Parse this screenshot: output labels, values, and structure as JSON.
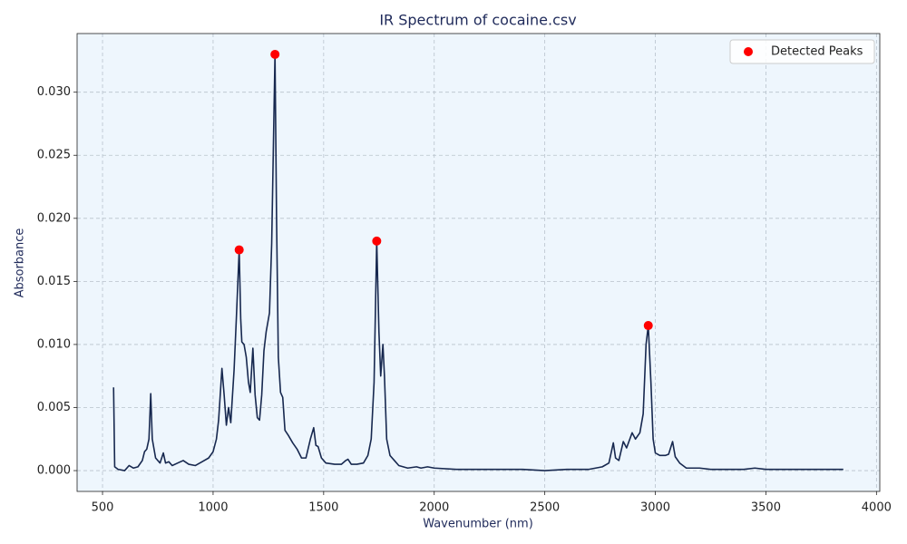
{
  "chart_data": {
    "type": "line",
    "title": "IR Spectrum of cocaine.csv",
    "x_label": "Wavenumber (nm)",
    "y_label": "Absorbance",
    "xlim": [
      385,
      4015
    ],
    "ylim": [
      -0.00165,
      0.03465
    ],
    "xticks": [
      500,
      1000,
      1500,
      2000,
      2500,
      3000,
      3500,
      4000
    ],
    "yticks": [
      {
        "value": 0,
        "label": "0.000"
      },
      {
        "value": 0.005,
        "label": "0.005"
      },
      {
        "value": 0.01,
        "label": "0.010"
      },
      {
        "value": 0.015,
        "label": "0.015"
      },
      {
        "value": 0.02,
        "label": "0.020"
      },
      {
        "value": 0.025,
        "label": "0.025"
      },
      {
        "value": 0.03,
        "label": "0.030"
      }
    ],
    "grid": true,
    "background": "#eef6fd",
    "legend_position": "upper-right",
    "series": [
      {
        "type": "line",
        "color": "#17284f",
        "x": [
          550,
          555,
          570,
          600,
          620,
          640,
          660,
          680,
          690,
          700,
          710,
          718,
          725,
          740,
          760,
          775,
          785,
          800,
          815,
          840,
          865,
          890,
          920,
          950,
          980,
          1000,
          1015,
          1025,
          1040,
          1050,
          1060,
          1070,
          1080,
          1095,
          1105,
          1118,
          1125,
          1130,
          1140,
          1150,
          1160,
          1168,
          1180,
          1190,
          1200,
          1210,
          1220,
          1230,
          1240,
          1255,
          1265,
          1275,
          1280,
          1287,
          1295,
          1305,
          1315,
          1325,
          1340,
          1360,
          1380,
          1400,
          1420,
          1440,
          1455,
          1465,
          1475,
          1490,
          1510,
          1550,
          1580,
          1600,
          1610,
          1625,
          1650,
          1680,
          1700,
          1715,
          1728,
          1740,
          1750,
          1758,
          1768,
          1775,
          1785,
          1800,
          1820,
          1840,
          1880,
          1920,
          1940,
          1970,
          2000,
          2100,
          2200,
          2300,
          2400,
          2500,
          2600,
          2700,
          2760,
          2790,
          2810,
          2820,
          2835,
          2855,
          2870,
          2895,
          2910,
          2930,
          2945,
          2958,
          2968,
          2980,
          2990,
          3000,
          3020,
          3045,
          3060,
          3078,
          3090,
          3110,
          3140,
          3200,
          3250,
          3300,
          3400,
          3450,
          3500,
          3600,
          3700,
          3800,
          3850
        ],
        "values": [
          0.0066,
          0.0003,
          0.0001,
          0.0,
          0.0004,
          0.0002,
          0.0003,
          0.0008,
          0.0015,
          0.0017,
          0.0025,
          0.0061,
          0.0025,
          0.001,
          0.0006,
          0.0014,
          0.0006,
          0.0007,
          0.0004,
          0.0006,
          0.0008,
          0.0005,
          0.0004,
          0.0007,
          0.001,
          0.0015,
          0.0025,
          0.004,
          0.0081,
          0.006,
          0.0036,
          0.005,
          0.0038,
          0.008,
          0.012,
          0.0175,
          0.012,
          0.0102,
          0.01,
          0.009,
          0.007,
          0.0062,
          0.0097,
          0.006,
          0.0042,
          0.004,
          0.006,
          0.0095,
          0.011,
          0.0125,
          0.018,
          0.028,
          0.033,
          0.02,
          0.009,
          0.0062,
          0.0058,
          0.0032,
          0.0028,
          0.0022,
          0.0017,
          0.001,
          0.001,
          0.0025,
          0.0034,
          0.002,
          0.0019,
          0.001,
          0.0006,
          0.0005,
          0.0005,
          0.0008,
          0.0009,
          0.0005,
          0.0005,
          0.0006,
          0.0012,
          0.0025,
          0.007,
          0.0182,
          0.011,
          0.0075,
          0.01,
          0.0075,
          0.0025,
          0.0012,
          0.0008,
          0.0004,
          0.0002,
          0.0003,
          0.0002,
          0.0003,
          0.0002,
          0.0001,
          0.0001,
          0.0001,
          0.0001,
          0.0,
          0.0001,
          0.0001,
          0.0003,
          0.0006,
          0.0022,
          0.001,
          0.0008,
          0.0023,
          0.0018,
          0.003,
          0.0025,
          0.003,
          0.0045,
          0.01,
          0.0115,
          0.007,
          0.0025,
          0.0014,
          0.0012,
          0.0012,
          0.0013,
          0.0023,
          0.0011,
          0.0006,
          0.0002,
          0.0002,
          0.0001,
          0.0001,
          0.0001,
          0.0002,
          0.0001,
          0.0001,
          0.0001,
          0.0001,
          0.0001
        ]
      },
      {
        "type": "scatter",
        "name": "Detected Peaks",
        "color": "#ff0000",
        "x": [
          1118,
          1280,
          1740,
          2968
        ],
        "values": [
          0.0175,
          0.033,
          0.0182,
          0.0115
        ]
      }
    ]
  }
}
